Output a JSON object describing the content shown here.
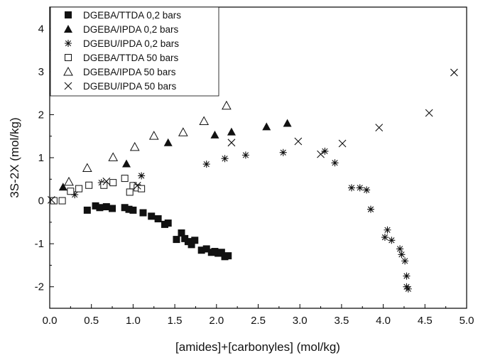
{
  "chart_data": {
    "type": "scatter",
    "title": "",
    "xlabel": "[amides]+[carbonyles] (mol/kg)",
    "ylabel": "3S-2X (mol/kg)",
    "xlim": [
      0,
      5
    ],
    "ylim": [
      -2.5,
      4.5
    ],
    "xticks": [
      0,
      0.5,
      1,
      1.5,
      2,
      2.5,
      3,
      3.5,
      4,
      4.5,
      5
    ],
    "xtick_labels": [
      "0.0",
      "0.5",
      "1.0",
      "1.5",
      "2.0",
      "2.5",
      "3.0",
      "3.5",
      "4.0",
      "4.5",
      "5.0"
    ],
    "yticks": [
      -2,
      -1,
      0,
      1,
      2,
      3,
      4
    ],
    "ytick_labels": [
      "-2",
      "-1",
      "0",
      "1",
      "2",
      "3",
      "4"
    ],
    "grid": false,
    "legend_position": "top-left",
    "series": [
      {
        "name": "DGEBA/TTDA 0,2 bars",
        "marker": "filled-square",
        "x": [
          0.45,
          0.55,
          0.6,
          0.68,
          0.75,
          0.9,
          0.95,
          1.0,
          1.12,
          1.22,
          1.3,
          1.38,
          1.42,
          1.52,
          1.58,
          1.62,
          1.66,
          1.7,
          1.74,
          1.82,
          1.88,
          1.94,
          1.98,
          2.02,
          2.06,
          2.1,
          2.14
        ],
        "y": [
          -0.22,
          -0.12,
          -0.16,
          -0.14,
          -0.18,
          -0.16,
          -0.2,
          -0.22,
          -0.28,
          -0.36,
          -0.42,
          -0.55,
          -0.52,
          -0.9,
          -0.75,
          -0.88,
          -0.95,
          -1.02,
          -0.92,
          -1.15,
          -1.12,
          -1.2,
          -1.18,
          -1.22,
          -1.2,
          -1.3,
          -1.28
        ]
      },
      {
        "name": "DGEBA/IPDA 0,2 bars",
        "marker": "filled-triangle",
        "x": [
          0.16,
          0.92,
          1.42,
          1.98,
          2.18,
          2.6,
          2.85
        ],
        "y": [
          0.32,
          0.86,
          1.35,
          1.53,
          1.6,
          1.72,
          1.8
        ]
      },
      {
        "name": "DGEBU/IPDA 0,2 bars",
        "marker": "asterisk",
        "x": [
          0.3,
          0.62,
          1.1,
          1.88,
          2.1,
          2.35,
          2.8,
          3.3,
          3.42,
          3.62,
          3.72,
          3.8,
          3.85,
          4.02,
          4.05,
          4.1,
          4.2,
          4.22,
          4.26,
          4.28,
          4.28,
          4.3
        ],
        "y": [
          0.14,
          0.42,
          0.58,
          0.85,
          0.98,
          1.06,
          1.12,
          1.15,
          0.88,
          0.3,
          0.3,
          0.25,
          -0.2,
          -0.85,
          -0.68,
          -0.92,
          -1.12,
          -1.25,
          -1.4,
          -1.75,
          -2.0,
          -2.05
        ]
      },
      {
        "name": "DGEBA/TTDA 50 bars",
        "marker": "open-square",
        "x": [
          0.05,
          0.15,
          0.25,
          0.35,
          0.47,
          0.65,
          0.76,
          0.9,
          0.96,
          1.0,
          1.05,
          1.1
        ],
        "y": [
          0.0,
          0.0,
          0.22,
          0.28,
          0.36,
          0.36,
          0.42,
          0.52,
          0.2,
          0.35,
          0.3,
          0.28
        ]
      },
      {
        "name": "DGEBA/IPDA 50 bars",
        "marker": "open-triangle",
        "x": [
          0.23,
          0.45,
          0.76,
          1.02,
          1.25,
          1.6,
          1.85,
          2.12
        ],
        "y": [
          0.44,
          0.76,
          1.01,
          1.25,
          1.51,
          1.59,
          1.85,
          2.21
        ]
      },
      {
        "name": "DGEBU/IPDA 50 bars",
        "marker": "cross",
        "x": [
          0.02,
          0.68,
          1.05,
          2.18,
          2.98,
          3.25,
          3.51,
          3.95,
          4.55,
          4.85
        ],
        "y": [
          0.02,
          0.45,
          0.35,
          1.35,
          1.38,
          1.08,
          1.33,
          1.7,
          2.04,
          2.98
        ]
      }
    ]
  }
}
